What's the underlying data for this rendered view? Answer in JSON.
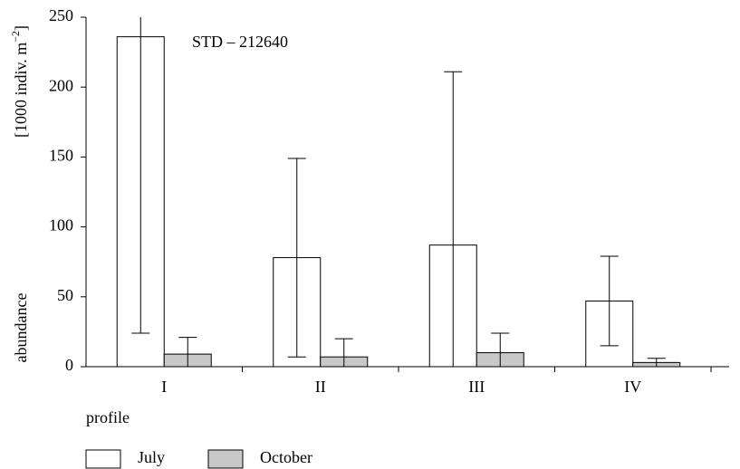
{
  "chart_data": {
    "type": "bar",
    "y_label": "abundance",
    "y_unit": {
      "text": "[1000 indiv. m",
      "superscript": "−2",
      "end": "]"
    },
    "x_label": "profile",
    "annotation": "STD – 212640",
    "categories": [
      "I",
      "II",
      "III",
      "IV"
    ],
    "series": [
      {
        "name": "July",
        "color": "#ffffff",
        "values": [
          236,
          78,
          87,
          47
        ],
        "errors": [
          212,
          71,
          124,
          32
        ]
      },
      {
        "name": "October",
        "color": "#c8c8c8",
        "values": [
          9,
          7,
          10,
          3
        ],
        "errors": [
          12,
          13,
          14,
          3
        ]
      }
    ],
    "ylim": [
      0,
      250
    ],
    "yticks": [
      0,
      50,
      100,
      150,
      200,
      250
    ]
  }
}
